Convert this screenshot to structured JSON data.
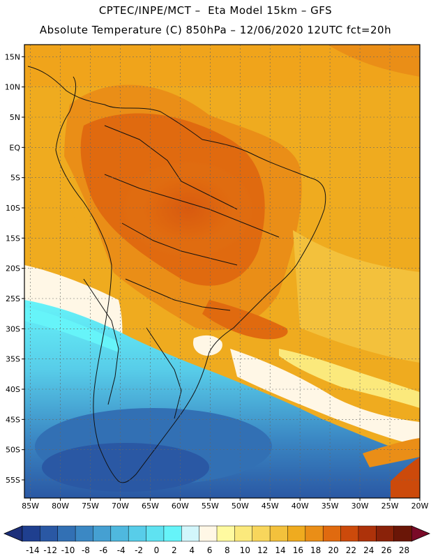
{
  "header": {
    "line1": "CPTEC/INPE/MCT –  Eta Model 15km – GFS",
    "line2": "Absolute Temperature (C) 850hPa – 12/06/2020 12UTC fct=20h"
  },
  "map": {
    "projection": "lat-lon",
    "lon_range": [
      -86,
      -20
    ],
    "lat_range": [
      -58,
      17
    ],
    "lat_labels": [
      "15N",
      "10N",
      "5N",
      "EQ",
      "5S",
      "10S",
      "15S",
      "20S",
      "25S",
      "30S",
      "35S",
      "40S",
      "45S",
      "50S",
      "55S"
    ],
    "lat_values": [
      15,
      10,
      5,
      0,
      -5,
      -10,
      -15,
      -20,
      -25,
      -30,
      -35,
      -40,
      -45,
      -50,
      -55
    ],
    "lon_labels": [
      "85W",
      "80W",
      "75W",
      "70W",
      "65W",
      "60W",
      "55W",
      "50W",
      "45W",
      "40W",
      "35W",
      "30W",
      "25W",
      "20W"
    ],
    "lon_values": [
      -85,
      -80,
      -75,
      -70,
      -65,
      -60,
      -55,
      -50,
      -45,
      -40,
      -35,
      -30,
      -25,
      -20
    ]
  },
  "colorbar": {
    "labels": [
      "-14",
      "-12",
      "-10",
      "-8",
      "-6",
      "-4",
      "-2",
      "0",
      "2",
      "4",
      "6",
      "8",
      "10",
      "12",
      "14",
      "16",
      "18",
      "20",
      "22",
      "24",
      "26",
      "28"
    ],
    "colors": [
      "#1f3f8f",
      "#2a58a4",
      "#3270b4",
      "#3b88c4",
      "#45a0d2",
      "#4fb8de",
      "#58cde9",
      "#5fe2f1",
      "#66f4f9",
      "#d2f6fb",
      "#fff7e6",
      "#fffaa0",
      "#fbe97c",
      "#f8d65c",
      "#f3c13c",
      "#efab1f",
      "#ea8e17",
      "#e06a0f",
      "#cc4a0b",
      "#ad320a",
      "#8a2209",
      "#6a1607"
    ],
    "under_color": "#1c2f7a",
    "over_color": "#7a0a28"
  }
}
